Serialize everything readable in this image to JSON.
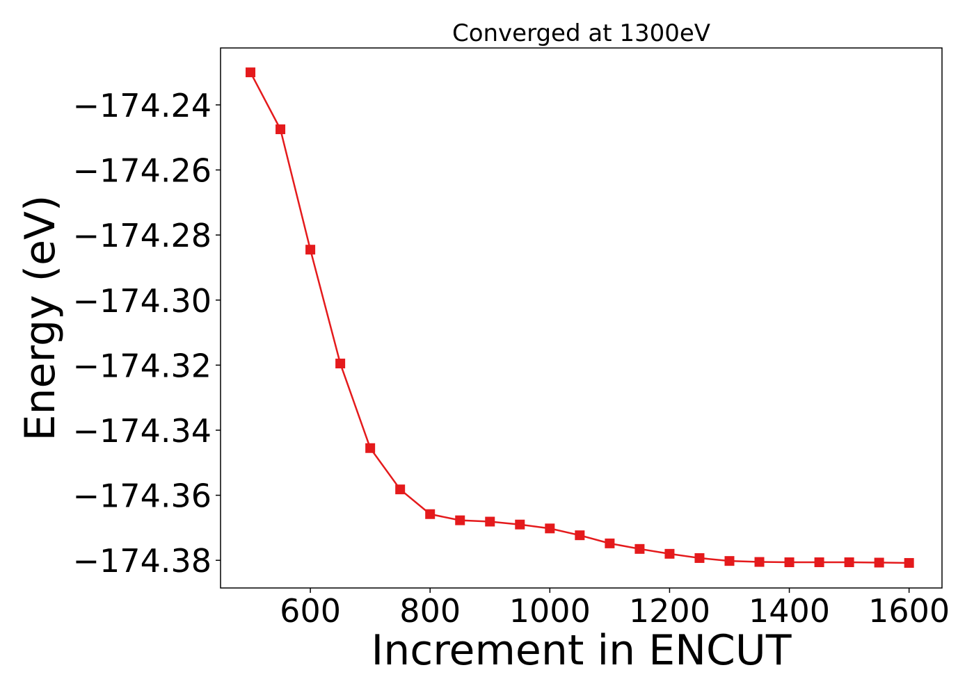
{
  "chart_data": {
    "type": "line",
    "title": "Converged at 1300eV",
    "xlabel": "Increment in ENCUT",
    "ylabel": "Energy (eV)",
    "xlim": [
      450,
      1655
    ],
    "ylim": [
      -174.3885,
      -174.2225
    ],
    "xticks": [
      {
        "value": 600,
        "label": "600"
      },
      {
        "value": 800,
        "label": "800"
      },
      {
        "value": 1000,
        "label": "1000"
      },
      {
        "value": 1200,
        "label": "1200"
      },
      {
        "value": 1400,
        "label": "1400"
      },
      {
        "value": 1600,
        "label": "1600"
      }
    ],
    "yticks": [
      {
        "value": -174.24,
        "label": "−174.24"
      },
      {
        "value": -174.26,
        "label": "−174.26"
      },
      {
        "value": -174.28,
        "label": "−174.28"
      },
      {
        "value": -174.3,
        "label": "−174.30"
      },
      {
        "value": -174.32,
        "label": "−174.32"
      },
      {
        "value": -174.34,
        "label": "−174.34"
      },
      {
        "value": -174.36,
        "label": "−174.36"
      },
      {
        "value": -174.38,
        "label": "−174.38"
      }
    ],
    "grid": false,
    "series": [
      {
        "color": "#e41a1c",
        "marker": "square",
        "x": [
          500,
          550,
          600,
          650,
          700,
          750,
          800,
          850,
          900,
          950,
          1000,
          1050,
          1100,
          1150,
          1200,
          1250,
          1300,
          1350,
          1400,
          1450,
          1500,
          1550,
          1600
        ],
        "y": [
          -174.23,
          -174.2475,
          -174.2845,
          -174.3195,
          -174.3455,
          -174.3582,
          -174.3658,
          -174.3677,
          -174.3681,
          -174.369,
          -174.3702,
          -174.3723,
          -174.3748,
          -174.3765,
          -174.378,
          -174.3793,
          -174.3802,
          -174.3805,
          -174.3806,
          -174.3806,
          -174.3806,
          -174.3807,
          -174.3808
        ]
      }
    ]
  }
}
